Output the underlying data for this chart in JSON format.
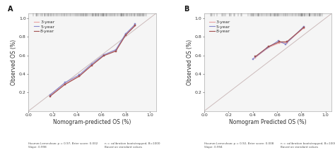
{
  "panel_A": {
    "title": "A",
    "xlabel": "Nomogram-predicted OS (%)",
    "ylabel": "Observed OS (%)",
    "xlim": [
      0.0,
      1.05
    ],
    "ylim": [
      0.0,
      1.05
    ],
    "xticks": [
      0.0,
      0.2,
      0.4,
      0.6,
      0.8,
      1.0
    ],
    "yticks": [
      0.2,
      0.4,
      0.6,
      0.8,
      1.0
    ],
    "curves": {
      "3year": {
        "x": [
          0.18,
          0.3,
          0.42,
          0.52,
          0.62,
          0.72,
          0.8,
          0.88
        ],
        "y": [
          0.165,
          0.29,
          0.38,
          0.49,
          0.6,
          0.65,
          0.82,
          0.925
        ],
        "color": "#E8A0A0",
        "label": "3-year"
      },
      "5year": {
        "x": [
          0.18,
          0.3,
          0.42,
          0.52,
          0.62,
          0.72,
          0.8,
          0.88
        ],
        "y": [
          0.175,
          0.305,
          0.39,
          0.505,
          0.605,
          0.66,
          0.83,
          0.935
        ],
        "color": "#8888CC",
        "label": "5-year"
      },
      "8year": {
        "x": [
          0.18,
          0.3,
          0.42,
          0.52,
          0.62,
          0.72,
          0.8,
          0.88
        ],
        "y": [
          0.16,
          0.285,
          0.375,
          0.49,
          0.595,
          0.645,
          0.815,
          0.92
        ],
        "color": "#A05050",
        "label": "8-year"
      }
    },
    "footnote_left": "Hosmer-Lemeshow: p = 0.97, Brier score: 0.002\nSlope: 0.998",
    "footnote_right": "n = calibration bootstrapped, B=1000\nBased on standard values"
  },
  "panel_B": {
    "title": "B",
    "xlabel": "Nomogram Predicted OS (%)",
    "ylabel": "Observed OS (%)",
    "xlim": [
      0.0,
      1.05
    ],
    "ylim": [
      0.0,
      1.05
    ],
    "xticks": [
      0.0,
      0.2,
      0.4,
      0.6,
      0.8,
      1.0
    ],
    "yticks": [
      0.2,
      0.4,
      0.6,
      0.8,
      1.0
    ],
    "curves": {
      "3year": {
        "x": [
          0.42,
          0.53,
          0.62,
          0.68,
          0.82
        ],
        "y": [
          0.575,
          0.685,
          0.735,
          0.735,
          0.895
        ],
        "color": "#E8A0A0",
        "label": "3-year"
      },
      "5year": {
        "x": [
          0.4,
          0.52,
          0.61,
          0.67,
          0.82
        ],
        "y": [
          0.56,
          0.68,
          0.755,
          0.72,
          0.91
        ],
        "color": "#8888CC",
        "label": "5-year"
      },
      "8year": {
        "x": [
          0.42,
          0.53,
          0.62,
          0.68,
          0.82
        ],
        "y": [
          0.585,
          0.695,
          0.745,
          0.745,
          0.9
        ],
        "color": "#A05050",
        "label": "8-year"
      }
    },
    "footnote_left": "Hosmer-Lemeshow: p = 0.92, Brier score: 0.008\nSlope: 0.994",
    "footnote_right": "n = calibration bootstrapped, B=1000\nBased on standard values"
  },
  "rug_color": "#444444",
  "diagonal_color": "#CCBBBB",
  "bg_color": "#FFFFFF",
  "axes_bg": "#F5F5F5",
  "tick_fontsize": 4.5,
  "label_fontsize": 5.5,
  "legend_fontsize": 4.5,
  "footnote_fontsize": 3.0,
  "title_fontsize": 7,
  "rug_A_x": [
    0.04,
    0.06,
    0.08,
    0.1,
    0.11,
    0.13,
    0.14,
    0.15,
    0.16,
    0.17,
    0.18,
    0.19,
    0.2,
    0.21,
    0.22,
    0.23,
    0.24,
    0.25,
    0.26,
    0.27,
    0.28,
    0.29,
    0.3,
    0.31,
    0.32,
    0.33,
    0.34,
    0.35,
    0.36,
    0.37,
    0.38,
    0.39,
    0.4,
    0.41,
    0.42,
    0.43,
    0.44,
    0.45,
    0.46,
    0.47,
    0.48,
    0.49,
    0.5,
    0.51,
    0.52,
    0.53,
    0.54,
    0.55,
    0.56,
    0.57,
    0.58,
    0.59,
    0.6,
    0.61,
    0.62,
    0.63,
    0.64,
    0.65,
    0.66,
    0.67,
    0.68,
    0.69,
    0.7,
    0.71,
    0.72,
    0.73,
    0.74,
    0.75,
    0.76,
    0.77,
    0.78,
    0.79,
    0.8,
    0.81,
    0.82,
    0.83,
    0.84,
    0.85,
    0.86,
    0.87,
    0.88,
    0.89,
    0.9,
    0.91,
    0.92,
    0.93,
    0.94,
    0.95,
    0.96,
    0.97
  ],
  "rug_B_x": [
    0.38,
    0.39,
    0.4,
    0.41,
    0.42,
    0.43,
    0.44,
    0.45,
    0.46,
    0.47,
    0.48,
    0.49,
    0.5,
    0.51,
    0.52,
    0.53,
    0.54,
    0.55,
    0.56,
    0.57,
    0.58,
    0.59,
    0.6,
    0.61,
    0.62,
    0.63,
    0.64,
    0.65,
    0.66,
    0.67,
    0.68,
    0.69,
    0.7,
    0.71,
    0.72,
    0.73,
    0.74,
    0.75,
    0.76,
    0.77,
    0.78,
    0.79,
    0.8,
    0.81,
    0.82,
    0.83,
    0.84,
    0.85,
    0.86,
    0.87,
    0.88,
    0.89,
    0.9,
    0.91,
    0.92,
    0.93,
    0.94,
    0.95,
    0.96,
    0.97
  ]
}
